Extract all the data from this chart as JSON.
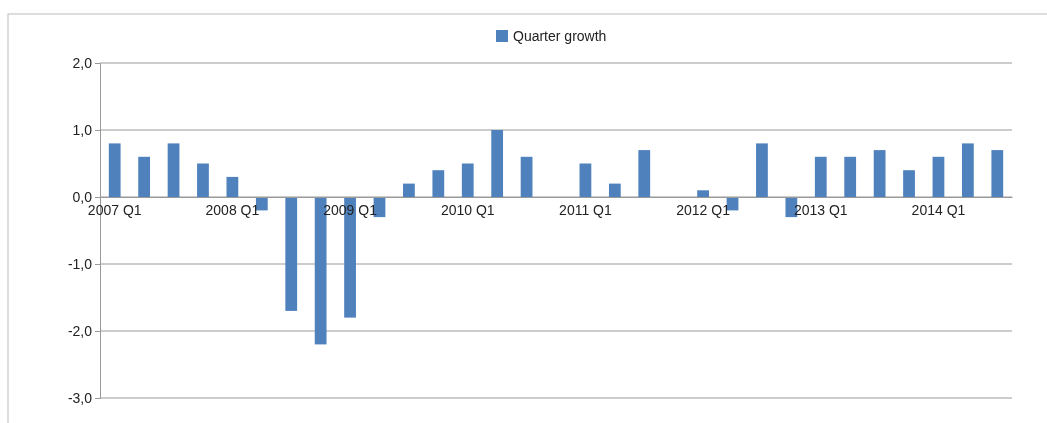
{
  "chart_data": {
    "type": "bar",
    "categories": [
      "2007 Q1",
      null,
      null,
      null,
      "2008 Q1",
      null,
      null,
      null,
      "2009 Q1",
      null,
      null,
      null,
      "2010 Q1",
      null,
      null,
      null,
      "2011 Q1",
      null,
      null,
      null,
      "2012 Q1",
      null,
      null,
      null,
      "2013 Q1",
      null,
      null,
      null,
      "2014 Q1",
      null,
      null
    ],
    "series": [
      {
        "name": "Quarter growth",
        "color": "#4f81bd",
        "values": [
          0.8,
          0.6,
          0.8,
          0.5,
          0.3,
          -0.2,
          -1.7,
          -2.2,
          -1.8,
          -0.3,
          0.2,
          0.4,
          0.5,
          1.0,
          0.6,
          0,
          0.5,
          0.2,
          0.7,
          0,
          0.1,
          -0.2,
          0.8,
          -0.3,
          0.6,
          0.6,
          0.7,
          0.4,
          0.6,
          0.8,
          0.7
        ]
      }
    ],
    "ylim": [
      -3,
      2
    ],
    "yticks": [
      {
        "value": -3,
        "label": "-3,0"
      },
      {
        "value": -2,
        "label": "-2,0"
      },
      {
        "value": -1,
        "label": "-1,0"
      },
      {
        "value": 0,
        "label": "0,0"
      },
      {
        "value": 1,
        "label": "1,0"
      },
      {
        "value": 2,
        "label": "2,0"
      }
    ],
    "grid": "y",
    "legend": "top"
  }
}
